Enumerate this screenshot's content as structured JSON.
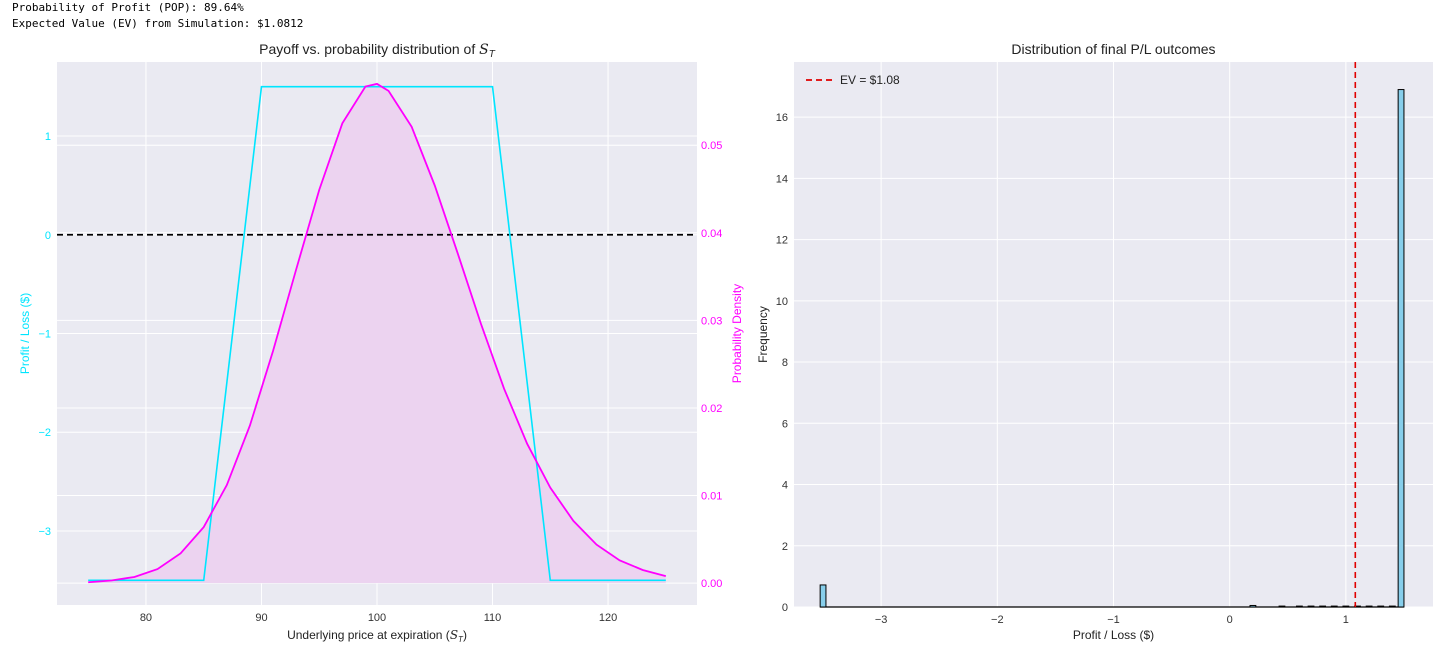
{
  "console": {
    "line1": "Probability of Profit (POP): 89.64%",
    "line2": "Expected Value (EV) from Simulation: $1.0812"
  },
  "colors": {
    "payoff": "#00e5ff",
    "density": "#ff00ff",
    "density_fill": "#ecd3f0",
    "zero_line": "#000000",
    "ev_line": "#e00000",
    "hist_fill": "#87ceeb",
    "hist_edge": "#000000",
    "plot_bg": "#eaeaf2",
    "grid": "#ffffff"
  },
  "chart_data": [
    {
      "type": "line",
      "title_main": "Payoff vs. probability distribution of ",
      "title_math": "S",
      "title_sub": "T",
      "xlabel_main": "Underlying price at expiration (",
      "xlabel_math": "S",
      "xlabel_sub": "T",
      "xlabel_end": ")",
      "ylabel_left": "Profit / Loss ($)",
      "ylabel_right": "Probability Density",
      "xlim": [
        72.3,
        127.7
      ],
      "ylim_left": [
        -3.75,
        1.75
      ],
      "ylim_right": [
        -0.0025,
        0.0595
      ],
      "x_ticks": [
        80,
        90,
        100,
        110,
        120
      ],
      "y_left_ticks": [
        1,
        0,
        -1,
        -2,
        -3
      ],
      "y_right_ticks": [
        "0.05",
        "0.04",
        "0.03",
        "0.02",
        "0.01",
        "0.00"
      ],
      "grid": true,
      "series": [
        {
          "kind": "payoff",
          "points": [
            [
              75,
              -3.5
            ],
            [
              85,
              -3.5
            ],
            [
              90,
              1.5
            ],
            [
              110,
              1.5
            ],
            [
              115,
              -3.5
            ],
            [
              125,
              -3.5
            ]
          ]
        },
        {
          "kind": "density",
          "x": [
            75,
            77,
            79,
            81,
            83,
            85,
            87,
            89,
            91,
            93,
            95,
            97,
            99,
            100,
            101,
            103,
            105,
            107,
            109,
            111,
            113,
            115,
            117,
            119,
            121,
            123,
            125
          ],
          "y": [
            0.0001,
            0.0003,
            0.0007,
            0.0016,
            0.0034,
            0.0064,
            0.0112,
            0.018,
            0.0265,
            0.0358,
            0.0449,
            0.0525,
            0.0567,
            0.057,
            0.0562,
            0.0521,
            0.0454,
            0.0376,
            0.0296,
            0.0222,
            0.0159,
            0.0109,
            0.0071,
            0.0044,
            0.0026,
            0.0015,
            0.0008
          ]
        }
      ],
      "reference_line": {
        "y": 0
      }
    },
    {
      "type": "bar",
      "title": "Distribution of final P/L outcomes",
      "xlabel": "Profit / Loss ($)",
      "ylabel": "Frequency",
      "xlim": [
        -3.75,
        1.75
      ],
      "ylim": [
        0,
        17.8
      ],
      "x_ticks": [
        "−3",
        "−2",
        "−1",
        "0",
        "1"
      ],
      "x_tick_values": [
        -3,
        -2,
        -1,
        0,
        1
      ],
      "y_ticks": [
        0,
        2,
        4,
        6,
        8,
        10,
        12,
        14,
        16
      ],
      "grid": true,
      "bin_width": 0.05,
      "bins": [
        {
          "x": -3.5,
          "height": 0.72
        },
        {
          "x": 0.2,
          "height": 0.05
        },
        {
          "x": 0.45,
          "height": 0.03
        },
        {
          "x": 0.6,
          "height": 0.03
        },
        {
          "x": 0.7,
          "height": 0.03
        },
        {
          "x": 0.8,
          "height": 0.03
        },
        {
          "x": 0.9,
          "height": 0.03
        },
        {
          "x": 1.0,
          "height": 0.03
        },
        {
          "x": 1.1,
          "height": 0.03
        },
        {
          "x": 1.2,
          "height": 0.03
        },
        {
          "x": 1.3,
          "height": 0.03
        },
        {
          "x": 1.4,
          "height": 0.03
        },
        {
          "x": 1.475,
          "height": 16.9
        }
      ],
      "ev_line": {
        "x": 1.0812
      },
      "legend": {
        "label": "EV = $1.08",
        "position": "top-left"
      }
    }
  ]
}
